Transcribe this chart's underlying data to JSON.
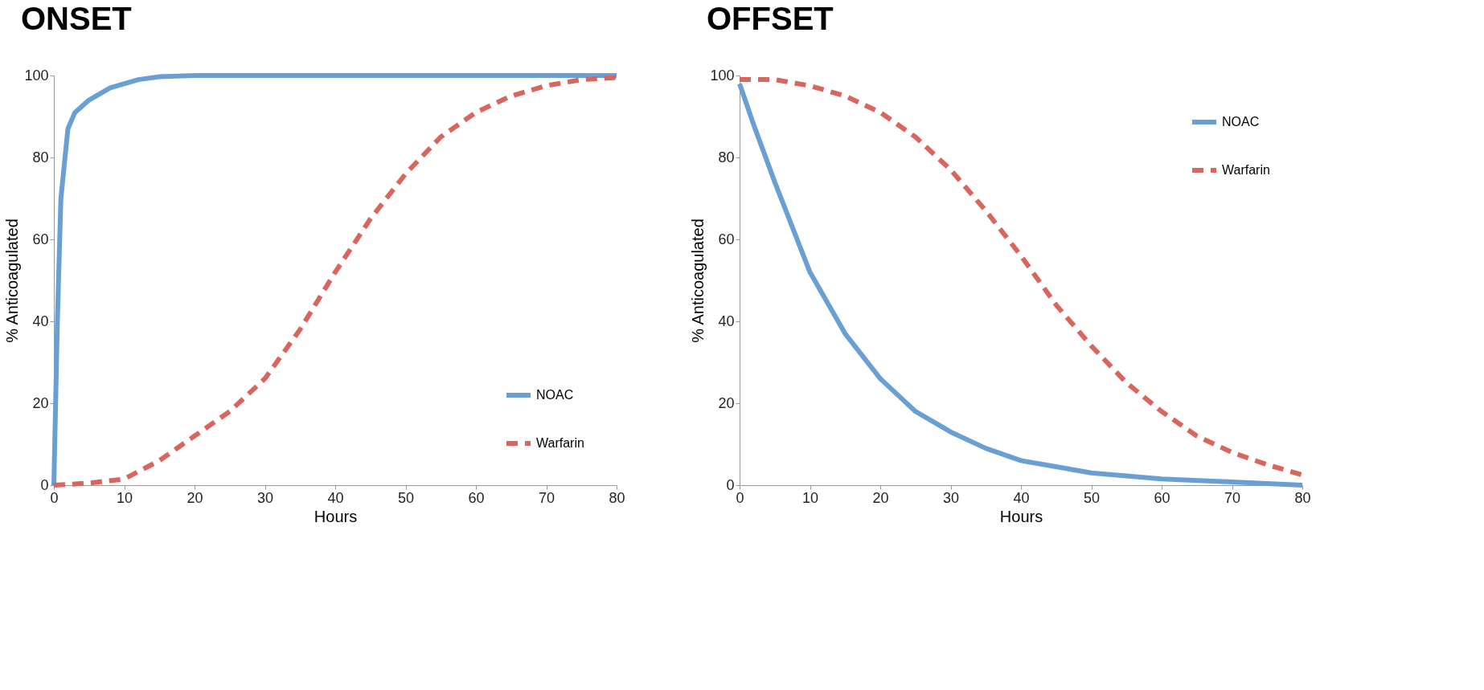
{
  "chart_data": [
    {
      "type": "line",
      "title": "ONSET",
      "xlabel": "Hours",
      "ylabel": "% Anticoagulated",
      "xlim": [
        0,
        80
      ],
      "ylim": [
        0,
        100
      ],
      "xticks": [
        0,
        10,
        20,
        30,
        40,
        50,
        60,
        70,
        80
      ],
      "yticks": [
        0,
        20,
        40,
        60,
        80,
        100
      ],
      "grid": false,
      "legend": "bottom right",
      "series": [
        {
          "name": "NOAC",
          "color": "#6a9fd4",
          "line_style": "solid",
          "x": [
            0,
            0.5,
            1,
            2,
            3,
            5,
            8,
            12,
            15,
            20,
            30,
            40,
            50,
            60,
            70,
            80
          ],
          "values": [
            0,
            40,
            70,
            87,
            91,
            94,
            97,
            99,
            99.7,
            100,
            100,
            100,
            100,
            100,
            100,
            100
          ]
        },
        {
          "name": "Warfarin",
          "color": "#d9655f",
          "line_style": "dashed",
          "x": [
            0,
            5,
            10,
            15,
            20,
            25,
            30,
            35,
            40,
            45,
            50,
            55,
            60,
            65,
            70,
            75,
            80
          ],
          "values": [
            0,
            0.5,
            1.5,
            6,
            12,
            18,
            26,
            38,
            52,
            65,
            76,
            85,
            91,
            95,
            97.5,
            99,
            99.5
          ]
        }
      ]
    },
    {
      "type": "line",
      "title": "OFFSET",
      "xlabel": "Hours",
      "ylabel": "% Anticoagulated",
      "xlim": [
        0,
        80
      ],
      "ylim": [
        0,
        100
      ],
      "xticks": [
        0,
        10,
        20,
        30,
        40,
        50,
        60,
        70,
        80
      ],
      "yticks": [
        0,
        20,
        40,
        60,
        80,
        100
      ],
      "grid": false,
      "legend": "top right",
      "series": [
        {
          "name": "NOAC",
          "color": "#6a9fd4",
          "line_style": "solid",
          "x": [
            0,
            2,
            5,
            10,
            15,
            20,
            25,
            30,
            35,
            40,
            45,
            50,
            60,
            70,
            80
          ],
          "values": [
            98,
            88,
            74,
            52,
            37,
            26,
            18,
            13,
            9,
            6,
            4.5,
            3,
            1.5,
            0.8,
            0
          ]
        },
        {
          "name": "Warfarin",
          "color": "#d9655f",
          "line_style": "dashed",
          "x": [
            0,
            5,
            10,
            15,
            20,
            25,
            30,
            35,
            40,
            45,
            50,
            55,
            60,
            65,
            70,
            75,
            80
          ],
          "values": [
            99,
            99,
            97.5,
            95,
            91,
            85,
            77,
            67,
            56,
            44,
            34,
            25,
            18,
            12,
            8,
            5,
            2.5
          ]
        }
      ]
    }
  ]
}
